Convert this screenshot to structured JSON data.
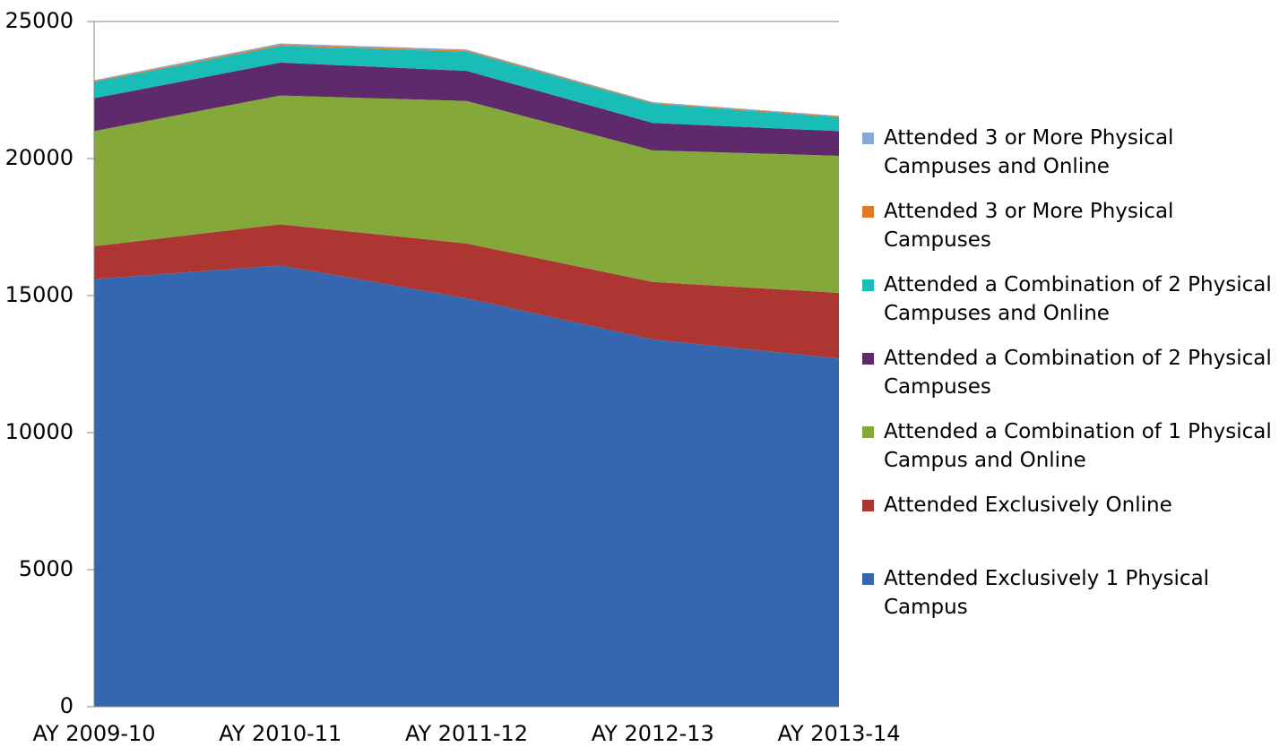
{
  "chart_data": {
    "type": "stacked_area",
    "categories": [
      "AY 2009-10",
      "AY 2010-11",
      "AY 2011-12",
      "AY 2012-13",
      "AY 2013-14"
    ],
    "series": [
      {
        "name": "Attended Exclusively  1 Physical Campus",
        "color": "#3467b0",
        "values": [
          15600,
          16100,
          14900,
          13400,
          12700
        ]
      },
      {
        "name": "Attended Exclusively Online",
        "color": "#ad3532",
        "values": [
          1200,
          1500,
          2000,
          2100,
          2400
        ]
      },
      {
        "name": "Attended a Combination of 1 Physical Campus and Online",
        "color": "#85a83a",
        "values": [
          4200,
          4700,
          5200,
          4800,
          5000
        ]
      },
      {
        "name": "Attended a Combination of 2 Physical Campuses",
        "color": "#5e2a6b",
        "values": [
          1200,
          1200,
          1100,
          1000,
          900
        ]
      },
      {
        "name": "Attended a Combination of 2 Physical Campuses and Online",
        "color": "#17bdb6",
        "values": [
          600,
          600,
          700,
          700,
          500
        ]
      },
      {
        "name": "Attended 3 or More Physical Campuses",
        "color": "#e07a26",
        "values": [
          30,
          50,
          40,
          30,
          30
        ]
      },
      {
        "name": "Attended 3 or More Physical Campuses and Online",
        "color": "#8aa6d4",
        "values": [
          30,
          50,
          40,
          30,
          30
        ]
      }
    ],
    "ylim": [
      0,
      25000
    ],
    "yticks": [
      0,
      5000,
      10000,
      15000,
      20000,
      25000
    ]
  }
}
